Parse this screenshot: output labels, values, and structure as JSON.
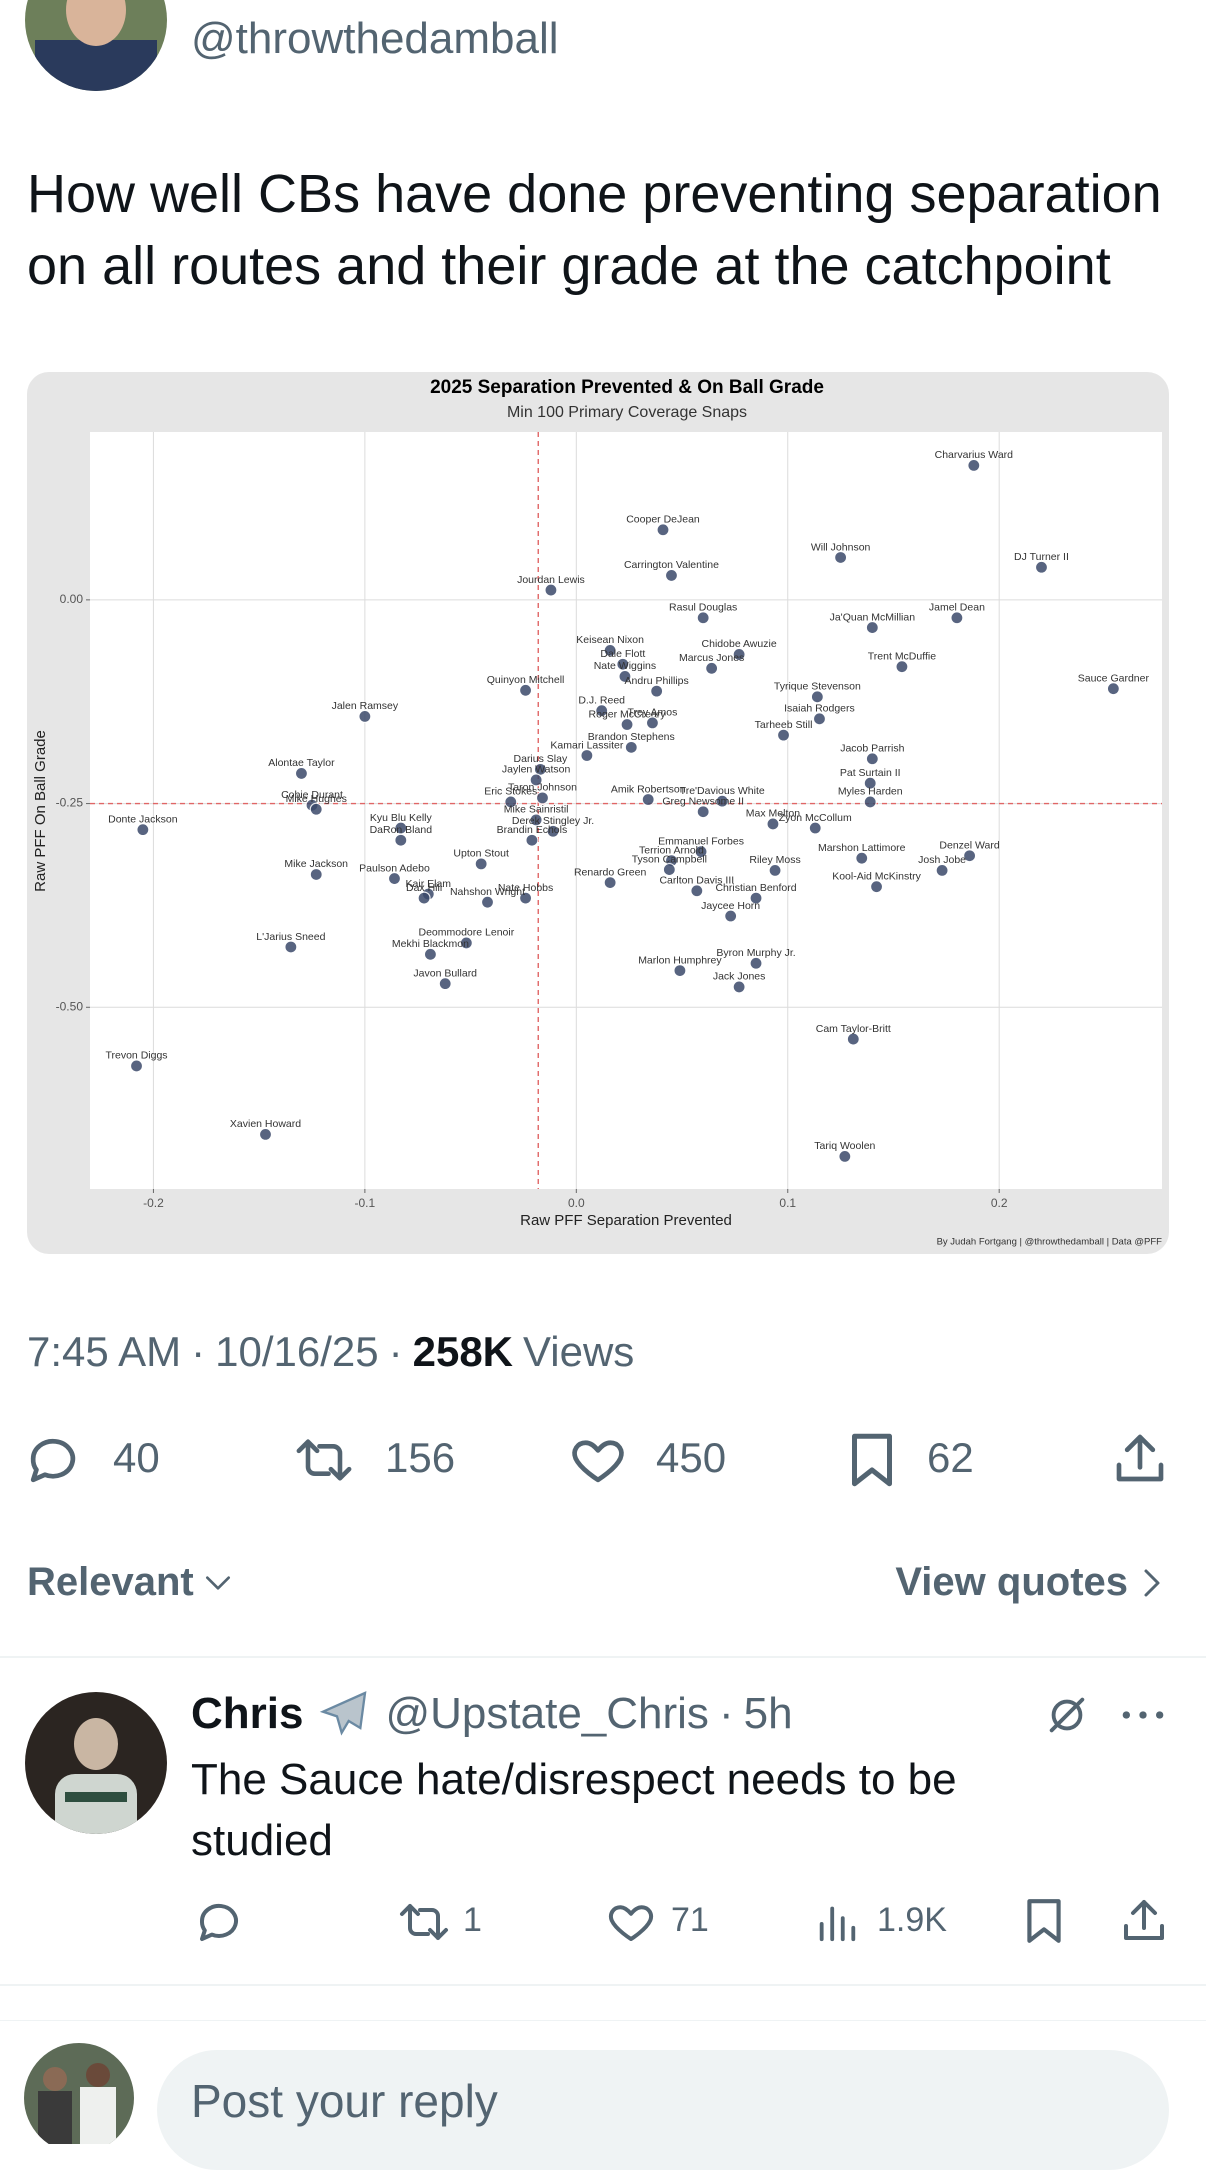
{
  "author": {
    "handle": "@throwthedamball"
  },
  "tweet": {
    "lines": [
      "How well CBs have done preventing separation",
      "on all routes and their grade at the catchpoint"
    ]
  },
  "chart_data": {
    "type": "scatter",
    "title": "2025 Separation Prevented & On Ball Grade",
    "subtitle": "Min 100 Primary Coverage Snaps",
    "x_label": "Raw PFF Separation Prevented",
    "y_label": "Raw PFF On Ball Grade",
    "credit": "By Judah Fortgang | @throwthedamball | Data @PFF",
    "color": "#3b4a6b",
    "labels": [
      "Charvarius Ward",
      "Cooper DeJean",
      "Carrington Valentine",
      "Will Johnson",
      "DJ Turner II",
      "Jourdan Lewis",
      "Rasul Douglas",
      "Jamel Dean",
      "Keisean Nixon",
      "Dale Flott",
      "Chidobe Awuzie",
      "Ja'Quan McMillian",
      "Trent McDuffie",
      "Marcus Jones",
      "Nate Wiggins",
      "Andru Phillips",
      "Tyrique Stevenson",
      "Sauce Gardner",
      "Quinyon Mitchell",
      "D.J. Reed",
      "Jalen Ramsey",
      "Isaiah Rodgers",
      "Roger McCreary",
      "Trey Amos",
      "Tarheeb Still",
      "Brandon Stephens",
      "Kamari Lassiter",
      "Jacob Parrish",
      "Darius Slay",
      "Jaylen Watson",
      "Alontae Taylor",
      "Pat Surtain II",
      "Eric Stokes",
      "Cobie Durant",
      "Taron Johnson",
      "Amik Robertson",
      "Tre'Davious White",
      "Myles Harden",
      "Donte Jackson",
      "Mike Hughes",
      "Kyu Blu Kelly",
      "Mike Sainristil",
      "Derek Stingley Jr.",
      "Greg Newsome II",
      "Max Melton",
      "Zyon McCollum",
      "Brandin Echols",
      "DaRon Bland",
      "Emmanuel Forbes",
      "Terrion Arnold",
      "Denzel Ward",
      "Marshon Lattimore",
      "Mike Jackson",
      "Upton Stout",
      "Renardo Green",
      "Tyson Campbell",
      "Riley Moss",
      "Josh Jobe",
      "Paulson Adebo",
      "Kair Elam",
      "Nate Hobbs",
      "Kool-Aid McKinstry",
      "Dax Hill",
      "Nahshon Wright",
      "Carlton Davis III",
      "Christian Benford",
      "Jaycee Horn",
      "Deommodore Lenoir",
      "L'Jarius Sneed",
      "Mekhi Blackmon",
      "Byron Murphy Jr.",
      "Marlon Humphrey",
      "Javon Bullard",
      "Jack Jones",
      "Cam Taylor-Britt",
      "Trevon Diggs",
      "Xavien Howard",
      "Tariq Woolen"
    ],
    "x": [
      0.188,
      0.041,
      0.045,
      0.125,
      0.22,
      -0.012,
      0.06,
      0.18,
      0.016,
      0.022,
      0.077,
      0.14,
      0.154,
      0.064,
      0.023,
      0.038,
      0.114,
      0.254,
      -0.024,
      0.012,
      -0.1,
      0.115,
      0.024,
      0.036,
      0.098,
      0.026,
      0.005,
      0.14,
      -0.017,
      -0.019,
      -0.13,
      0.139,
      -0.031,
      -0.125,
      -0.016,
      0.034,
      0.069,
      0.139,
      -0.205,
      -0.123,
      -0.083,
      -0.019,
      -0.011,
      0.06,
      0.093,
      0.113,
      -0.021,
      -0.083,
      0.059,
      0.045,
      0.186,
      0.135,
      -0.123,
      -0.045,
      0.016,
      0.044,
      0.094,
      0.173,
      -0.086,
      -0.07,
      -0.024,
      0.142,
      -0.072,
      -0.042,
      0.057,
      0.085,
      0.073,
      -0.052,
      -0.135,
      -0.069,
      0.085,
      0.049,
      -0.062,
      0.077,
      0.131,
      -0.208,
      -0.147,
      0.127
    ],
    "values": [
      0.165,
      0.086,
      0.03,
      0.052,
      0.04,
      0.012,
      -0.022,
      -0.022,
      -0.062,
      -0.079,
      -0.067,
      -0.034,
      -0.082,
      -0.084,
      -0.094,
      -0.112,
      -0.119,
      -0.109,
      -0.111,
      -0.136,
      -0.143,
      -0.146,
      -0.153,
      -0.151,
      -0.166,
      -0.181,
      -0.191,
      -0.195,
      -0.208,
      -0.221,
      -0.213,
      -0.225,
      -0.248,
      -0.252,
      -0.243,
      -0.245,
      -0.247,
      -0.248,
      -0.282,
      -0.257,
      -0.28,
      -0.27,
      -0.284,
      -0.26,
      -0.275,
      -0.28,
      -0.295,
      -0.295,
      -0.309,
      -0.32,
      -0.314,
      -0.317,
      -0.337,
      -0.324,
      -0.347,
      -0.331,
      -0.332,
      -0.332,
      -0.342,
      -0.361,
      -0.366,
      -0.352,
      -0.366,
      -0.371,
      -0.357,
      -0.366,
      -0.388,
      -0.421,
      -0.426,
      -0.435,
      -0.446,
      -0.455,
      -0.471,
      -0.475,
      -0.539,
      -0.572,
      -0.656,
      -0.683
    ],
    "xlim": [
      -0.23,
      0.277
    ],
    "ylim": [
      -0.723,
      0.206
    ],
    "xticks": [
      -0.2,
      -0.1,
      {
        "value": 0,
        "label": "0.0"
      },
      0.1,
      0.2
    ],
    "yticks": [
      {
        "value": 0,
        "label": "0.00"
      },
      {
        "value": -0.25,
        "label": "-0.25"
      },
      {
        "value": -0.5,
        "label": "-0.50"
      }
    ],
    "grid": true,
    "ref_lines": {
      "x": -0.018,
      "y": -0.25,
      "color": "#e06666"
    }
  },
  "meta": {
    "time": "7:45 AM",
    "separator": "·",
    "date": "10/16/25",
    "views": "258K",
    "views_label": "Views"
  },
  "actions": {
    "replies": 40,
    "reposts": 156,
    "likes": 450,
    "bookmarks": 62
  },
  "filters": {
    "sort": "Relevant",
    "quotes": "View quotes"
  },
  "reply": {
    "name": "Chris",
    "handle": "@Upstate_Chris",
    "time": "5h",
    "lines": [
      "The Sauce hate/disrespect needs to be",
      "studied"
    ],
    "reposts": 1,
    "likes": 71,
    "views": "1.9K"
  },
  "composer": {
    "placeholder": "Post your reply"
  }
}
